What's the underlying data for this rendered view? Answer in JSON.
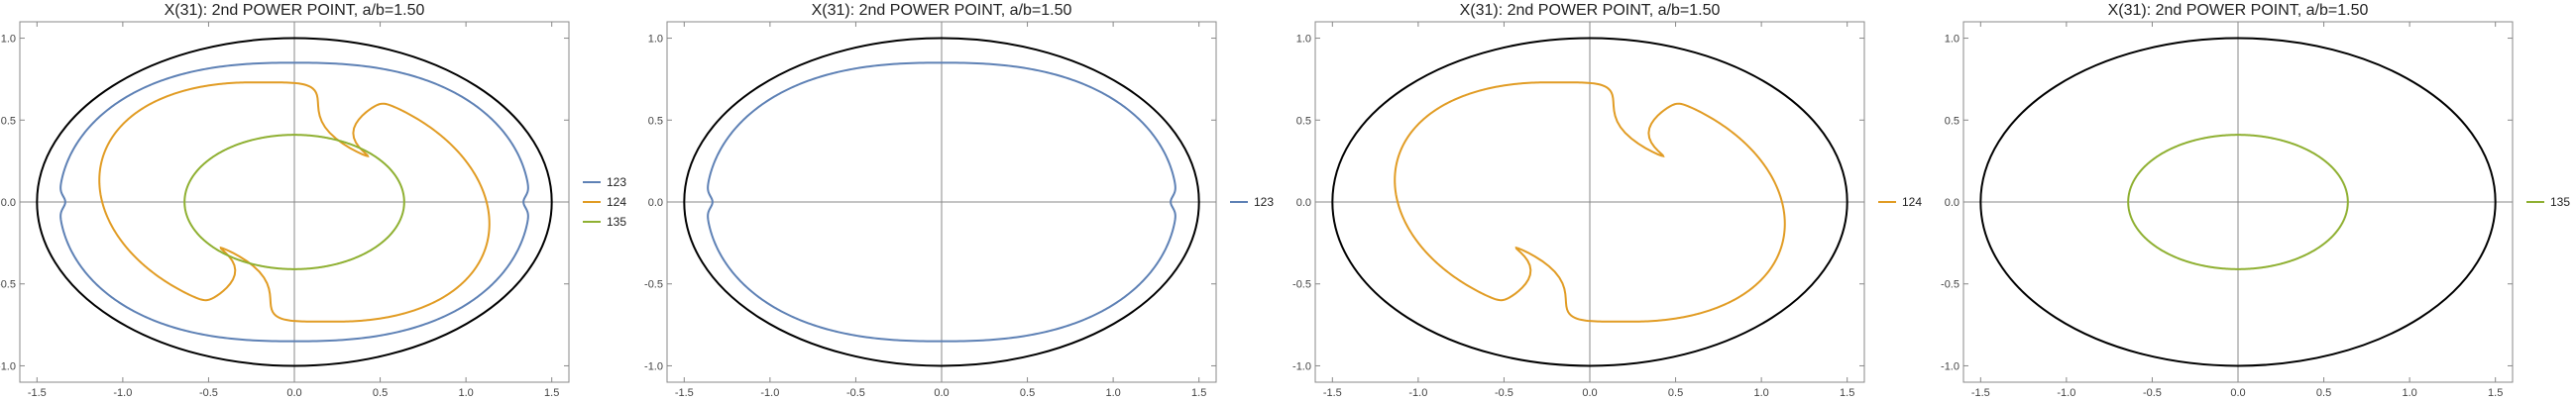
{
  "chart_data": [
    {
      "type": "line",
      "title": "X(31): 2nd POWER POINT, a/b=1.50",
      "xlim": [
        -1.6,
        1.6
      ],
      "ylim": [
        -1.1,
        1.1
      ],
      "x_ticks": [
        -1.5,
        -1.0,
        -0.5,
        0.0,
        0.5,
        1.0,
        1.5
      ],
      "x_tick_labels": [
        "-1.5",
        "-1.0",
        "-0.5",
        "0.0",
        "0.5",
        "1.0",
        "1.5"
      ],
      "y_ticks": [
        -1.0,
        -0.5,
        0.0,
        0.5,
        1.0
      ],
      "y_tick_labels": [
        "-1.0",
        "-0.5",
        "0.0",
        "0.5",
        "1.0"
      ],
      "ellipse": {
        "a": 1.5,
        "b": 1.0,
        "color": "#000000"
      },
      "legend_position": "right",
      "series": [
        {
          "name": "123",
          "color": "#5E81B5",
          "curve": "loop123"
        },
        {
          "name": "124",
          "color": "#E19C24",
          "curve": "loop124"
        },
        {
          "name": "135",
          "color": "#8FB032",
          "curve": "ellipse135"
        }
      ]
    },
    {
      "type": "line",
      "title": "X(31): 2nd POWER POINT, a/b=1.50",
      "xlim": [
        -1.6,
        1.6
      ],
      "ylim": [
        -1.1,
        1.1
      ],
      "x_ticks": [
        -1.5,
        -1.0,
        -0.5,
        0.0,
        0.5,
        1.0,
        1.5
      ],
      "x_tick_labels": [
        "-1.5",
        "-1.0",
        "-0.5",
        "0.0",
        "0.5",
        "1.0",
        "1.5"
      ],
      "y_ticks": [
        -1.0,
        -0.5,
        0.0,
        0.5,
        1.0
      ],
      "y_tick_labels": [
        "-1.0",
        "-0.5",
        "0.0",
        "0.5",
        "1.0"
      ],
      "ellipse": {
        "a": 1.5,
        "b": 1.0,
        "color": "#000000"
      },
      "legend_position": "right",
      "series": [
        {
          "name": "123",
          "color": "#5E81B5",
          "curve": "loop123"
        }
      ]
    },
    {
      "type": "line",
      "title": "X(31): 2nd POWER POINT, a/b=1.50",
      "xlim": [
        -1.6,
        1.6
      ],
      "ylim": [
        -1.1,
        1.1
      ],
      "x_ticks": [
        -1.5,
        -1.0,
        -0.5,
        0.0,
        0.5,
        1.0,
        1.5
      ],
      "x_tick_labels": [
        "-1.5",
        "-1.0",
        "-0.5",
        "0.0",
        "0.5",
        "1.0",
        "1.5"
      ],
      "y_ticks": [
        -1.0,
        -0.5,
        0.0,
        0.5,
        1.0
      ],
      "y_tick_labels": [
        "-1.0",
        "-0.5",
        "0.0",
        "0.5",
        "1.0"
      ],
      "ellipse": {
        "a": 1.5,
        "b": 1.0,
        "color": "#000000"
      },
      "legend_position": "right",
      "series": [
        {
          "name": "124",
          "color": "#E19C24",
          "curve": "loop124"
        }
      ]
    },
    {
      "type": "line",
      "title": "X(31): 2nd POWER POINT, a/b=1.50",
      "xlim": [
        -1.6,
        1.6
      ],
      "ylim": [
        -1.1,
        1.1
      ],
      "x_ticks": [
        -1.5,
        -1.0,
        -0.5,
        0.0,
        0.5,
        1.0,
        1.5
      ],
      "x_tick_labels": [
        "-1.5",
        "-1.0",
        "-0.5",
        "0.0",
        "0.5",
        "1.0",
        "1.5"
      ],
      "y_ticks": [
        -1.0,
        -0.5,
        0.0,
        0.5,
        1.0
      ],
      "y_tick_labels": [
        "-1.0",
        "-0.5",
        "0.0",
        "0.5",
        "1.0"
      ],
      "ellipse": {
        "a": 1.5,
        "b": 1.0,
        "color": "#000000"
      },
      "legend_position": "right",
      "series": [
        {
          "name": "135",
          "color": "#8FB032",
          "curve": "ellipse135"
        }
      ]
    }
  ]
}
